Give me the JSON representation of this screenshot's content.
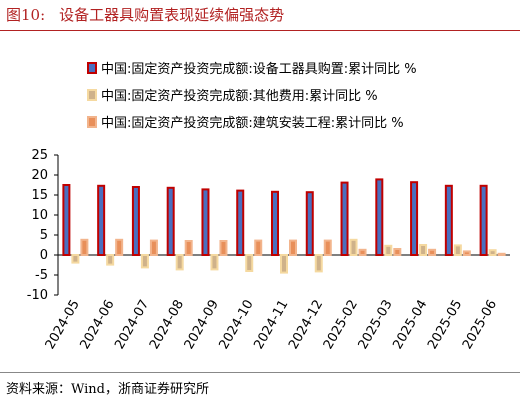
{
  "figure": {
    "label": "图10:",
    "title": "设备工器具购置表现延续偏强态势",
    "source": "资料来源：Wind，浙商证券研究所"
  },
  "chart_data": {
    "type": "bar",
    "categories": [
      "2024-05",
      "2024-06",
      "2024-07",
      "2024-08",
      "2024-09",
      "2024-10",
      "2024-11",
      "2024-12",
      "2025-02",
      "2025-03",
      "2025-04",
      "2025-05",
      "2025-06"
    ],
    "ylim": [
      -10,
      25
    ],
    "yticks": [
      "25",
      "20",
      "15",
      "10",
      "5",
      "0",
      "-5",
      "-10"
    ],
    "legend_position": "top-left",
    "series": [
      {
        "name": "中国:固定资产投资完成额:设备工器具购置:累计同比 %",
        "color": "#4a6fbf",
        "edge_color": "#c00000",
        "values": [
          17.5,
          17.3,
          17.0,
          16.8,
          16.4,
          16.1,
          15.8,
          15.7,
          18.1,
          18.9,
          18.2,
          17.3,
          17.3
        ]
      },
      {
        "name": "中国:固定资产投资完成额:其他费用:累计同比 %",
        "color": "#cfb28a",
        "edge_color": "#f5d9a0",
        "values": [
          -1.9,
          -2.4,
          -3.1,
          -3.6,
          -3.6,
          -4.0,
          -4.4,
          -4.1,
          3.8,
          2.3,
          2.5,
          2.4,
          1.2
        ]
      },
      {
        "name": "中国:固定资产投资完成额:建筑安装工程:累计同比 %",
        "color": "#e88f5a",
        "edge_color": "#f2b48c",
        "values": [
          3.8,
          3.8,
          3.6,
          3.5,
          3.5,
          3.6,
          3.6,
          3.6,
          1.3,
          1.5,
          1.3,
          0.9,
          0.3
        ]
      }
    ]
  }
}
